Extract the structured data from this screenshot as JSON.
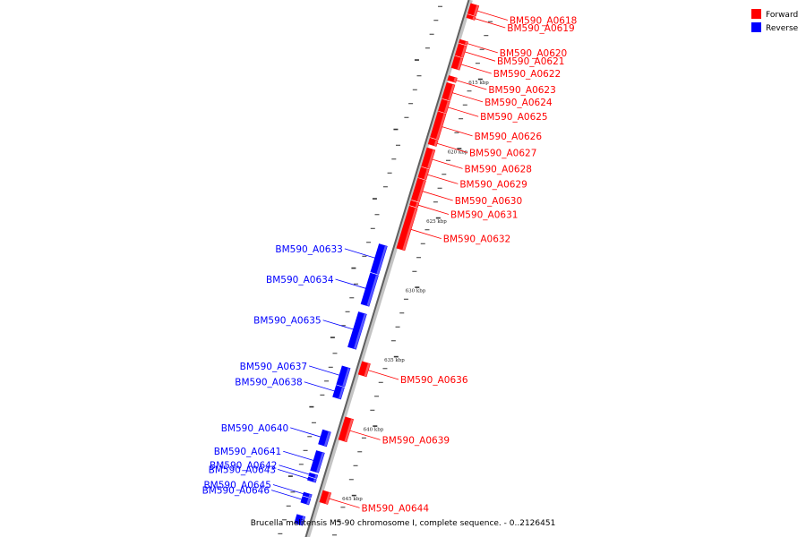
{
  "caption": "Brucella melitensis M5-90 chromosome I, complete sequence. - 0..2126451",
  "legend": {
    "forward": {
      "label": "Forward",
      "color": "#ff0000"
    },
    "reverse": {
      "label": "Reverse",
      "color": "#0000ff"
    }
  },
  "scale_ticks": [
    {
      "kbp": 615,
      "label": "615 kbp"
    },
    {
      "kbp": 620,
      "label": "620 kbp"
    },
    {
      "kbp": 625,
      "label": "625 kbp"
    },
    {
      "kbp": 630,
      "label": "630 kbp"
    },
    {
      "kbp": 635,
      "label": "635 kbp"
    },
    {
      "kbp": 640,
      "label": "640 kbp"
    },
    {
      "kbp": 645,
      "label": "645 kbp"
    }
  ],
  "genes": [
    {
      "name": "BM590_A0618",
      "strand": "forward",
      "start_kbp": 610.2,
      "end_kbp": 610.9
    },
    {
      "name": "BM590_A0619",
      "strand": "forward",
      "start_kbp": 611.0,
      "end_kbp": 611.2
    },
    {
      "name": "BM590_A0620",
      "strand": "forward",
      "start_kbp": 612.8,
      "end_kbp": 613.0
    },
    {
      "name": "BM590_A0621",
      "strand": "forward",
      "start_kbp": 613.1,
      "end_kbp": 613.9
    },
    {
      "name": "BM590_A0622",
      "strand": "forward",
      "start_kbp": 614.0,
      "end_kbp": 614.8
    },
    {
      "name": "BM590_A0623",
      "strand": "forward",
      "start_kbp": 615.4,
      "end_kbp": 615.7
    },
    {
      "name": "BM590_A0624",
      "strand": "forward",
      "start_kbp": 615.9,
      "end_kbp": 617.0
    },
    {
      "name": "BM590_A0625",
      "strand": "forward",
      "start_kbp": 617.1,
      "end_kbp": 617.9
    },
    {
      "name": "BM590_A0626",
      "strand": "forward",
      "start_kbp": 618.0,
      "end_kbp": 619.8
    },
    {
      "name": "BM590_A0627",
      "strand": "forward",
      "start_kbp": 619.9,
      "end_kbp": 620.3
    },
    {
      "name": "BM590_A0628",
      "strand": "forward",
      "start_kbp": 620.6,
      "end_kbp": 621.9
    },
    {
      "name": "BM590_A0629",
      "strand": "forward",
      "start_kbp": 622.0,
      "end_kbp": 622.7
    },
    {
      "name": "BM590_A0630",
      "strand": "forward",
      "start_kbp": 622.8,
      "end_kbp": 624.3
    },
    {
      "name": "BM590_A0631",
      "strand": "forward",
      "start_kbp": 624.4,
      "end_kbp": 624.7
    },
    {
      "name": "BM590_A0632",
      "strand": "forward",
      "start_kbp": 624.8,
      "end_kbp": 627.8
    },
    {
      "name": "BM590_A0633",
      "strand": "reverse",
      "start_kbp": 627.9,
      "end_kbp": 629.9
    },
    {
      "name": "BM590_A0634",
      "strand": "reverse",
      "start_kbp": 630.0,
      "end_kbp": 632.2
    },
    {
      "name": "BM590_A0635",
      "strand": "reverse",
      "start_kbp": 632.8,
      "end_kbp": 635.3
    },
    {
      "name": "BM590_A0636",
      "strand": "forward",
      "start_kbp": 636.0,
      "end_kbp": 636.9
    },
    {
      "name": "BM590_A0637",
      "strand": "reverse",
      "start_kbp": 636.7,
      "end_kbp": 638.0
    },
    {
      "name": "BM590_A0638",
      "strand": "reverse",
      "start_kbp": 638.1,
      "end_kbp": 638.9
    },
    {
      "name": "BM590_A0639",
      "strand": "forward",
      "start_kbp": 640.0,
      "end_kbp": 641.6
    },
    {
      "name": "BM590_A0640",
      "strand": "reverse",
      "start_kbp": 641.3,
      "end_kbp": 642.3
    },
    {
      "name": "BM590_A0641",
      "strand": "reverse",
      "start_kbp": 642.8,
      "end_kbp": 644.2
    },
    {
      "name": "BM590_A0642",
      "strand": "reverse",
      "start_kbp": 644.4,
      "end_kbp": 644.6
    },
    {
      "name": "BM590_A0643",
      "strand": "reverse",
      "start_kbp": 644.7,
      "end_kbp": 644.9
    },
    {
      "name": "BM590_A0644",
      "strand": "forward",
      "start_kbp": 645.3,
      "end_kbp": 646.1
    },
    {
      "name": "BM590_A0645",
      "strand": "reverse",
      "start_kbp": 645.8,
      "end_kbp": 646.0
    },
    {
      "name": "BM590_A0646",
      "strand": "reverse",
      "start_kbp": 646.1,
      "end_kbp": 646.5
    },
    {
      "name": "",
      "strand": "reverse",
      "start_kbp": 647.4,
      "end_kbp": 648.0
    }
  ]
}
